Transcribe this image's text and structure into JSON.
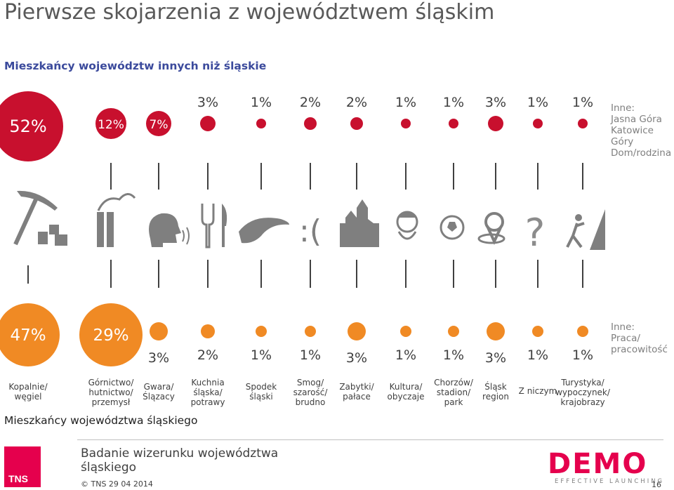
{
  "title": "Pierwsze skojarzenia z województwem śląskim",
  "subtitle_top": "Mieszkańcy województw innych niż śląskie",
  "subtitle_bottom": "Mieszkańcy województwa śląskiego",
  "colors": {
    "top": "#c8102e",
    "bottom": "#f08a24",
    "text": "#595959",
    "accent_blue": "#3b4a9c",
    "stem": "#404040"
  },
  "chart_data": {
    "type": "bubble",
    "categories": [
      "Kopalnie/ węgiel",
      "Górnictwo/ hutnictwo/ przemysł",
      "Gwara/ Ślązacy",
      "Kuchnia śląska/ potrawy",
      "Spodek śląski",
      "Smog/ szarość/ brudno",
      "Zabytki/ pałace",
      "Kultura/ obyczaje",
      "Chorzów/ stadion/ park",
      "Śląsk region",
      "Z niczym",
      "Turystyka/ wypoczynek/ krajobrazy"
    ],
    "category_lines": [
      [
        "Kopalnie/",
        "węgiel"
      ],
      [
        "Górnictwo/",
        "hutnictwo/",
        "przemysł"
      ],
      [
        "Gwara/",
        "Ślązacy"
      ],
      [
        "Kuchnia",
        "śląska/",
        "potrawy"
      ],
      [
        "Spodek",
        "śląski"
      ],
      [
        "Smog/",
        "szarość/",
        "brudno"
      ],
      [
        "Zabytki/",
        "pałace"
      ],
      [
        "Kultura/",
        "obyczaje"
      ],
      [
        "Chorzów/",
        "stadion/",
        "park"
      ],
      [
        "Śląsk",
        "region"
      ],
      [
        "Z niczym"
      ],
      [
        "Turystyka/",
        "wypoczynek/",
        "krajobrazy"
      ]
    ],
    "icons": [
      "pickaxe-coal-icon",
      "factory-chimneys-icon",
      "speaking-head-icon",
      "fork-knife-icon",
      "spodek-arena-icon",
      "sad-face-icon",
      "castle-icon",
      "folk-woman-icon",
      "football-icon",
      "map-pin-icon",
      "question-mark-icon",
      "hiker-icon"
    ],
    "series": [
      {
        "name": "Mieszkańcy województw innych niż śląskie",
        "values": [
          52,
          12,
          7,
          3,
          1,
          2,
          2,
          1,
          1,
          3,
          1,
          1
        ],
        "labels": [
          "52%",
          "12%",
          "7%",
          "3%",
          "1%",
          "2%",
          "2%",
          "1%",
          "1%",
          "3%",
          "1%",
          "1%"
        ],
        "other": [
          "Inne:",
          "Jasna Góra",
          "Katowice",
          "Góry",
          "Dom/rodzina"
        ]
      },
      {
        "name": "Mieszkańcy województwa śląskiego",
        "values": [
          47,
          29,
          3,
          2,
          1,
          1,
          3,
          1,
          1,
          3,
          1,
          1
        ],
        "labels": [
          "47%",
          "29%",
          "3%",
          "2%",
          "1%",
          "1%",
          "3%",
          "1%",
          "1%",
          "3%",
          "1%",
          "1%"
        ],
        "other": [
          "Inne:",
          "Praca/",
          "pracowitość"
        ]
      }
    ]
  },
  "footer": {
    "tns_logo_text": "TNS",
    "study_line1": "Badanie wizerunku województwa",
    "study_line2": "śląskiego",
    "copyright": "© TNS  29 04 2014",
    "demo_logo_text": "DEMO",
    "tagline": "EFFECTIVE LAUNCHING",
    "page_number": "16"
  }
}
